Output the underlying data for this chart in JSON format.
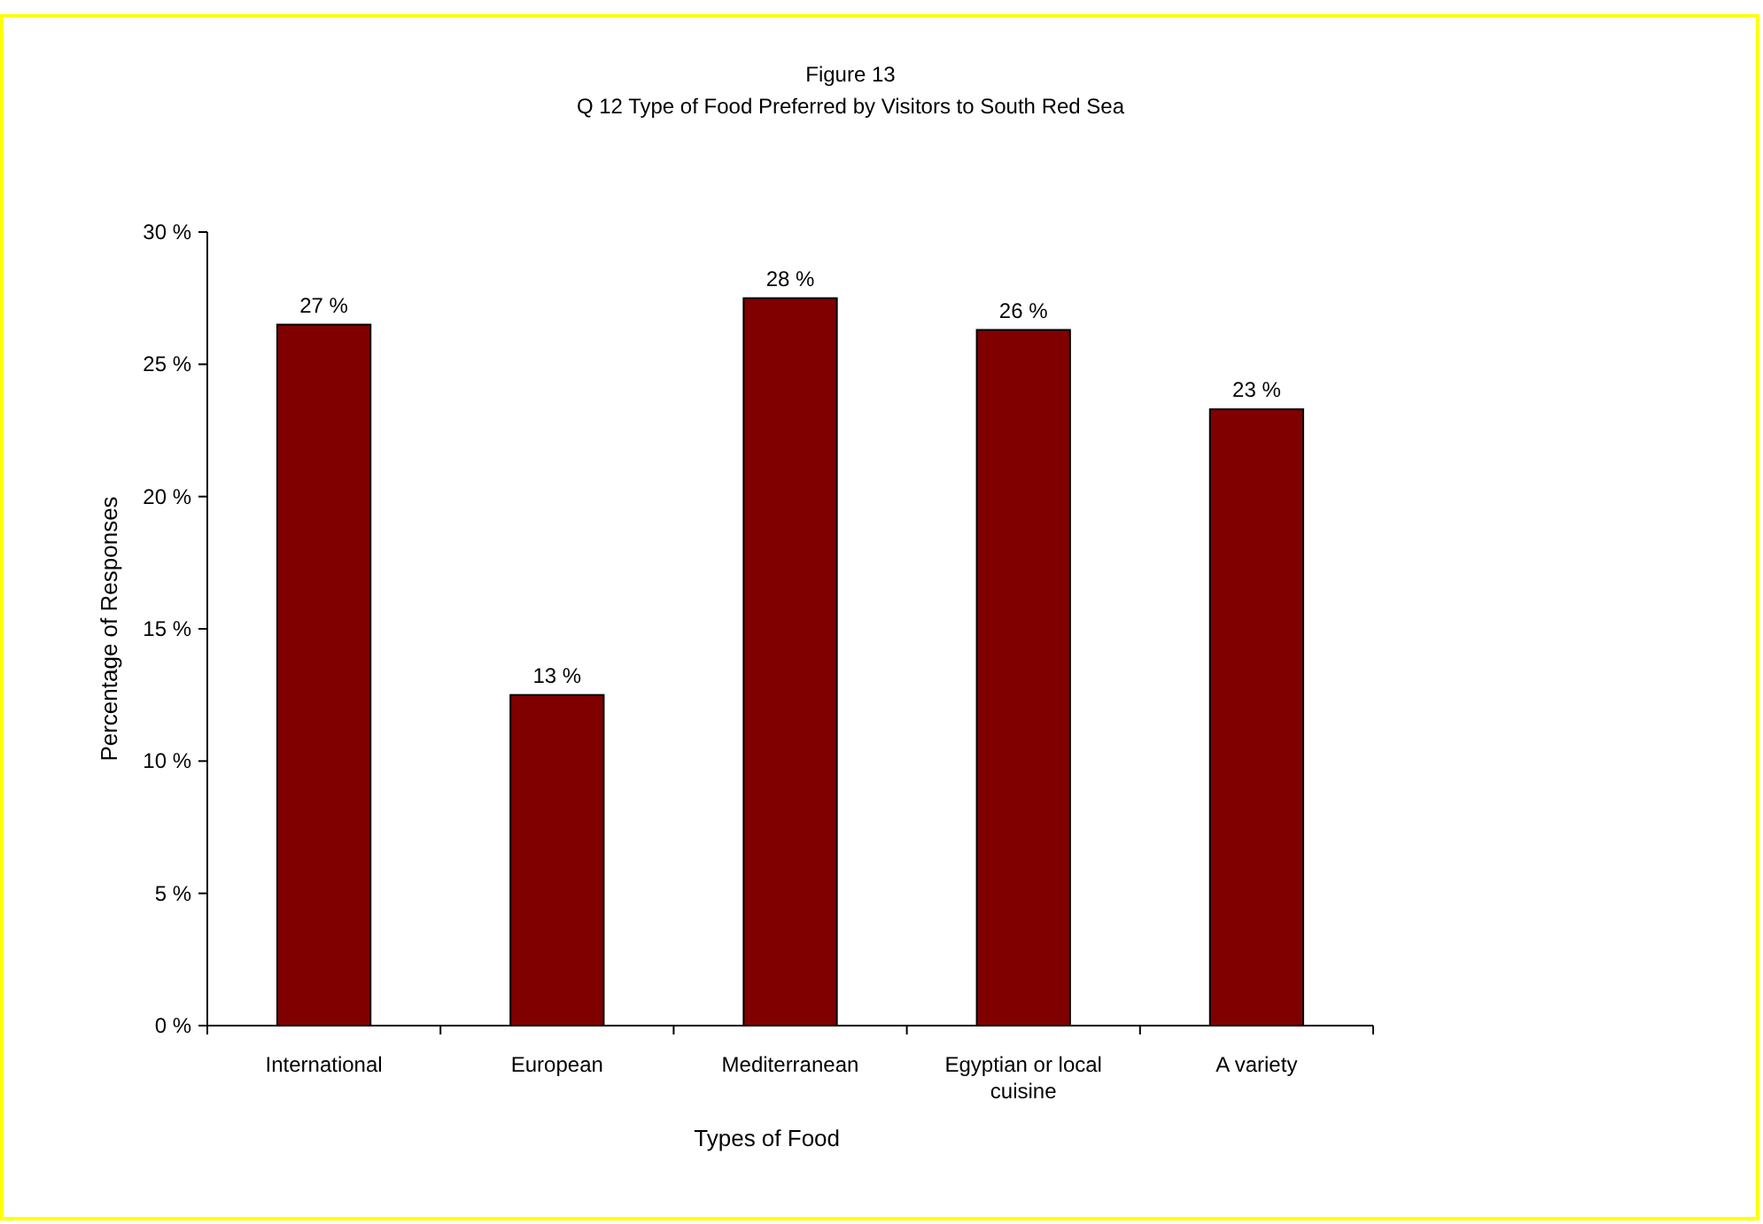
{
  "chart_data": {
    "type": "bar",
    "title": "Figure 13",
    "subtitle": "Q 12 Type of Food Preferred by Visitors to South Red Sea",
    "xlabel": "Types of Food",
    "ylabel": "Percentage of Responses",
    "categories": [
      "International",
      "European",
      "Mediterranean",
      "Egyptian or local cuisine",
      "A variety"
    ],
    "values": [
      26.5,
      12.5,
      27.5,
      26.3,
      23.3
    ],
    "value_labels": [
      "27 %",
      "13 %",
      "28 %",
      "26 %",
      "23 %"
    ],
    "color": "#800000",
    "ylim": [
      0,
      30
    ],
    "yticks": [
      {
        "value": 0,
        "label": "0 %"
      },
      {
        "value": 5,
        "label": "5 %"
      },
      {
        "value": 10,
        "label": "10 %"
      },
      {
        "value": 15,
        "label": "15 %"
      },
      {
        "value": 20,
        "label": "20 %"
      },
      {
        "value": 25,
        "label": "25 %"
      },
      {
        "value": 30,
        "label": "30 %"
      }
    ],
    "grid": false
  }
}
